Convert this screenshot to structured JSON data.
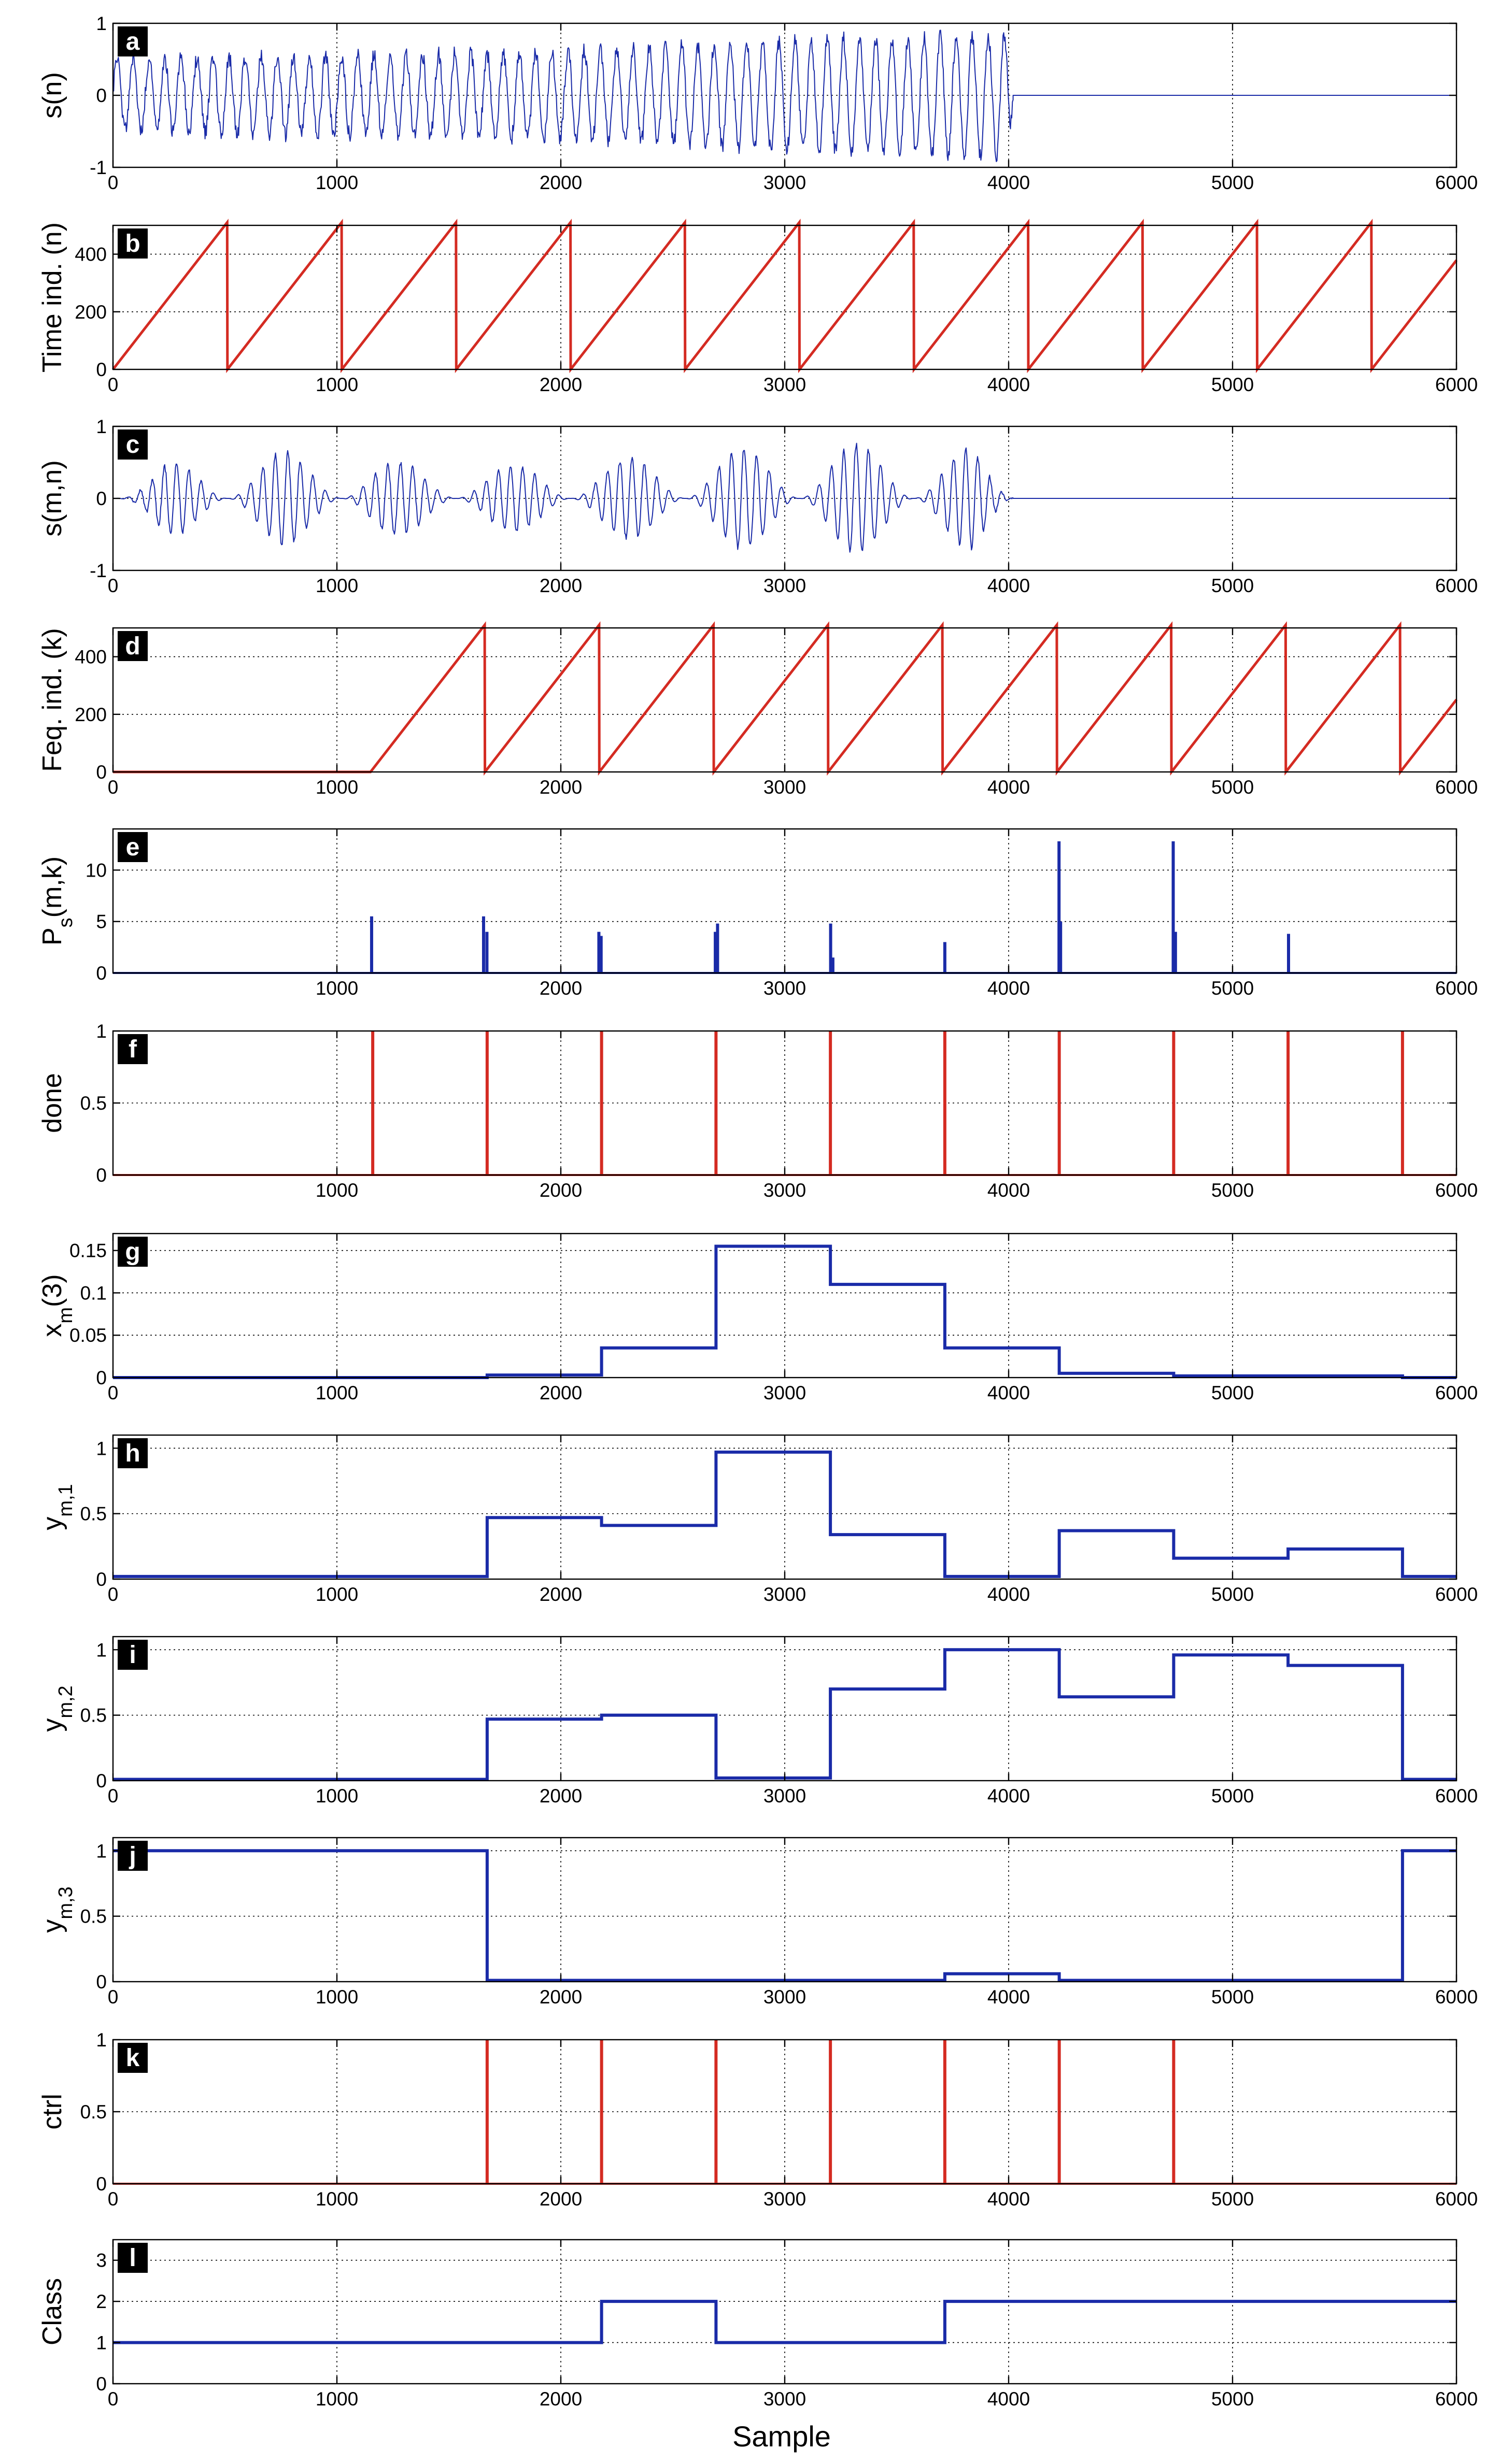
{
  "figure": {
    "xlabel": "Sample"
  },
  "colors": {
    "blue": "#1a2ba8",
    "red": "#d42b22",
    "axis": "#000000",
    "grid": "#000000"
  },
  "chart_data": [
    {
      "id": "a",
      "label": "a",
      "type": "line",
      "ylabel": "s(n)",
      "signal": "noisy-sinusoid",
      "xlim": [
        0,
        6000
      ],
      "ylim": [
        -1,
        1
      ],
      "xticks": [
        0,
        1000,
        2000,
        3000,
        4000,
        5000,
        6000
      ],
      "yticks": [
        -1,
        0,
        1
      ],
      "color": "blue",
      "grid": true,
      "series": [
        {
          "x": [
            0,
            1000,
            2000,
            3000,
            4000,
            4020,
            6000
          ],
          "y": [
            0.5,
            0.55,
            0.6,
            0.75,
            0.85,
            0,
            0
          ]
        }
      ]
    },
    {
      "id": "b",
      "label": "b",
      "type": "line",
      "ylabel": "Time ind. (n)",
      "signal": "sawtooth",
      "xlim": [
        0,
        6000
      ],
      "ylim": [
        0,
        500
      ],
      "xticks": [
        0,
        1000,
        2000,
        3000,
        4000,
        5000,
        6000
      ],
      "yticks": [
        0,
        200,
        400
      ],
      "color": "red",
      "grid": true,
      "series": [
        {
          "x": [
            0,
            510,
            511,
            1021,
            1022,
            1532,
            1533,
            2043,
            2044,
            2554,
            2555,
            3065,
            3066,
            3576,
            3577,
            4087,
            4088,
            4598,
            4599,
            5109,
            5110,
            5620,
            5621,
            6000
          ],
          "y": [
            0,
            510,
            0,
            510,
            0,
            510,
            0,
            510,
            0,
            510,
            0,
            510,
            0,
            510,
            0,
            510,
            0,
            510,
            0,
            510,
            0,
            510,
            0,
            379
          ]
        }
      ]
    },
    {
      "id": "c",
      "label": "c",
      "type": "line",
      "ylabel": "s(m,n)",
      "signal": "windowed-bursts",
      "xlim": [
        0,
        6000
      ],
      "ylim": [
        -1,
        1
      ],
      "xticks": [
        0,
        1000,
        2000,
        3000,
        4000,
        5000,
        6000
      ],
      "yticks": [
        -1,
        0,
        1
      ],
      "color": "blue",
      "grid": true,
      "series": [
        {
          "x": [
            0,
            255,
            766,
            1277,
            1788,
            2299,
            2810,
            3321,
            3832,
            4020,
            6000
          ],
          "y": [
            0,
            0.5,
            0.65,
            0.5,
            0.45,
            0.55,
            0.7,
            0.75,
            0.7,
            0,
            0
          ]
        }
      ]
    },
    {
      "id": "d",
      "label": "d",
      "type": "line",
      "ylabel": "Feq. ind. (k)",
      "signal": "sawtooth",
      "xlim": [
        0,
        6000
      ],
      "ylim": [
        0,
        500
      ],
      "xticks": [
        0,
        1000,
        2000,
        3000,
        4000,
        5000,
        6000
      ],
      "yticks": [
        0,
        200,
        400
      ],
      "color": "red",
      "grid": true,
      "series": [
        {
          "x": [
            0,
            1150,
            1660,
            1661,
            2171,
            2172,
            2682,
            2683,
            3193,
            3194,
            3704,
            3705,
            4215,
            4216,
            4726,
            4727,
            5237,
            5238,
            5748,
            5749,
            6000
          ],
          "y": [
            0,
            0,
            510,
            0,
            510,
            0,
            510,
            0,
            510,
            0,
            510,
            0,
            510,
            0,
            510,
            0,
            510,
            0,
            510,
            0,
            251
          ]
        }
      ]
    },
    {
      "id": "e",
      "label": "e",
      "type": "spikes",
      "ylabel": "P_s(m,k)",
      "xlim": [
        0,
        6000
      ],
      "ylim": [
        0,
        14
      ],
      "xticks": [
        1000,
        2000,
        3000,
        4000,
        5000,
        6000
      ],
      "yticks": [
        0,
        5,
        10
      ],
      "color": "blue",
      "grid": true,
      "series": [
        {
          "x": [
            1155,
            1655,
            1670,
            2170,
            2180,
            2690,
            2700,
            3205,
            3215,
            3715,
            4225,
            4232,
            4735,
            4745,
            5250
          ],
          "y": [
            5.5,
            5.5,
            4.0,
            4.0,
            3.6,
            4.0,
            4.8,
            4.8,
            1.5,
            3.0,
            12.8,
            5.0,
            12.8,
            4.0,
            3.8
          ]
        }
      ]
    },
    {
      "id": "f",
      "label": "f",
      "type": "spikes",
      "ylabel": "done",
      "xlim": [
        0,
        6000
      ],
      "ylim": [
        0,
        1
      ],
      "xticks": [
        1000,
        2000,
        3000,
        4000,
        5000,
        6000
      ],
      "yticks": [
        0,
        0.5,
        1
      ],
      "color": "red",
      "grid": true,
      "series": [
        {
          "x": [
            1160,
            1671,
            2182,
            2693,
            3204,
            3715,
            4226,
            4737,
            5248,
            5759
          ],
          "y": [
            1,
            1,
            1,
            1,
            1,
            1,
            1,
            1,
            1,
            1
          ]
        }
      ]
    },
    {
      "id": "g",
      "label": "g",
      "type": "step",
      "ylabel": "x_m(3)",
      "xlim": [
        0,
        6000
      ],
      "ylim": [
        0,
        0.17
      ],
      "xticks": [
        0,
        1000,
        2000,
        3000,
        4000,
        5000,
        6000
      ],
      "yticks": [
        0,
        0.05,
        0.1,
        0.15
      ],
      "color": "blue",
      "grid": true,
      "series": [
        {
          "x": [
            0,
            1671,
            2182,
            2693,
            3204,
            3715,
            4226,
            4737,
            5759,
            6000
          ],
          "y": [
            0,
            0.003,
            0.035,
            0.155,
            0.11,
            0.035,
            0.005,
            0.002,
            0,
            0
          ]
        }
      ]
    },
    {
      "id": "h",
      "label": "h",
      "type": "step",
      "ylabel": "y_m,1",
      "xlim": [
        0,
        6000
      ],
      "ylim": [
        0,
        1.1
      ],
      "xticks": [
        0,
        1000,
        2000,
        3000,
        4000,
        5000,
        6000
      ],
      "yticks": [
        0,
        0.5,
        1
      ],
      "color": "blue",
      "grid": true,
      "series": [
        {
          "x": [
            0,
            1671,
            2182,
            2693,
            3204,
            3715,
            4226,
            4737,
            5248,
            5759,
            6000
          ],
          "y": [
            0.02,
            0.47,
            0.41,
            0.97,
            0.34,
            0.02,
            0.37,
            0.16,
            0.23,
            0.02,
            0.02
          ]
        }
      ]
    },
    {
      "id": "i",
      "label": "i",
      "type": "step",
      "ylabel": "y_m,2",
      "xlim": [
        0,
        6000
      ],
      "ylim": [
        0,
        1.1
      ],
      "xticks": [
        0,
        1000,
        2000,
        3000,
        4000,
        5000,
        6000
      ],
      "yticks": [
        0,
        0.5,
        1
      ],
      "color": "blue",
      "grid": true,
      "series": [
        {
          "x": [
            0,
            1671,
            2182,
            2693,
            3204,
            3715,
            4226,
            4737,
            5248,
            5759,
            6000
          ],
          "y": [
            0.01,
            0.47,
            0.5,
            0.02,
            0.7,
            1.0,
            0.64,
            0.96,
            0.88,
            0.01,
            0.01
          ]
        }
      ]
    },
    {
      "id": "j",
      "label": "j",
      "type": "step",
      "ylabel": "y_m,3",
      "xlim": [
        0,
        6000
      ],
      "ylim": [
        0,
        1.1
      ],
      "xticks": [
        0,
        1000,
        2000,
        3000,
        4000,
        5000,
        6000
      ],
      "yticks": [
        0,
        0.5,
        1
      ],
      "color": "blue",
      "grid": true,
      "series": [
        {
          "x": [
            0,
            1671,
            2182,
            2693,
            3204,
            3715,
            4226,
            4737,
            5248,
            5759,
            6000
          ],
          "y": [
            1.0,
            0.01,
            0.01,
            0.01,
            0.01,
            0.06,
            0.01,
            0.01,
            0.01,
            1.0,
            1.0
          ]
        }
      ]
    },
    {
      "id": "k",
      "label": "k",
      "type": "spikes",
      "ylabel": "ctrl",
      "xlim": [
        0,
        6000
      ],
      "ylim": [
        0,
        1
      ],
      "xticks": [
        0,
        1000,
        2000,
        3000,
        4000,
        5000,
        6000
      ],
      "yticks": [
        0,
        0.5,
        1
      ],
      "color": "red",
      "grid": true,
      "series": [
        {
          "x": [
            1671,
            2182,
            2693,
            3204,
            3715,
            4226,
            4737
          ],
          "y": [
            1,
            1,
            1,
            1,
            1,
            1,
            1
          ]
        }
      ]
    },
    {
      "id": "l",
      "label": "l",
      "type": "step",
      "ylabel": "Class",
      "xlim": [
        0,
        6000
      ],
      "ylim": [
        0,
        3.5
      ],
      "xticks": [
        0,
        1000,
        2000,
        3000,
        4000,
        5000,
        6000
      ],
      "yticks": [
        0,
        1,
        2,
        3
      ],
      "color": "blue",
      "grid": true,
      "series": [
        {
          "x": [
            0,
            2182,
            2693,
            3715,
            6000
          ],
          "y": [
            1,
            2,
            1,
            2,
            2
          ]
        }
      ]
    }
  ]
}
